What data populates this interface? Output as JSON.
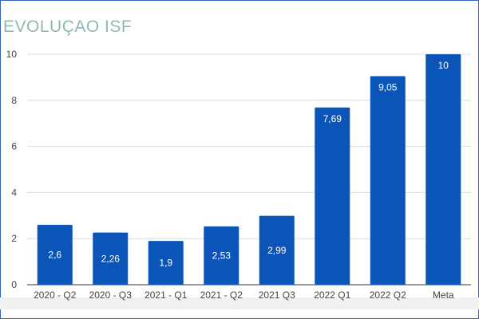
{
  "chart_data": {
    "type": "bar",
    "title": "EVOLUÇAO ISF",
    "categories": [
      "2020 - Q2",
      "2020 - Q3",
      "2021 - Q1",
      "2021 - Q2",
      "2021 Q3",
      "2022 Q1",
      "2022 Q2",
      "Meta"
    ],
    "values": [
      2.6,
      2.26,
      1.9,
      2.53,
      2.99,
      7.69,
      9.05,
      10
    ],
    "data_labels": [
      "2,6",
      "2,26",
      "1,9",
      "2,53",
      "2,99",
      "7,69",
      "9,05",
      "10"
    ],
    "y_ticks": [
      0,
      2,
      4,
      6,
      8,
      10
    ],
    "ylim": [
      0,
      10
    ],
    "xlabel": "",
    "ylabel": "",
    "grid": true,
    "bar_color": "#0b55b9",
    "grid_color": "#dcdcdc",
    "title_color": "#8fb8b6"
  }
}
